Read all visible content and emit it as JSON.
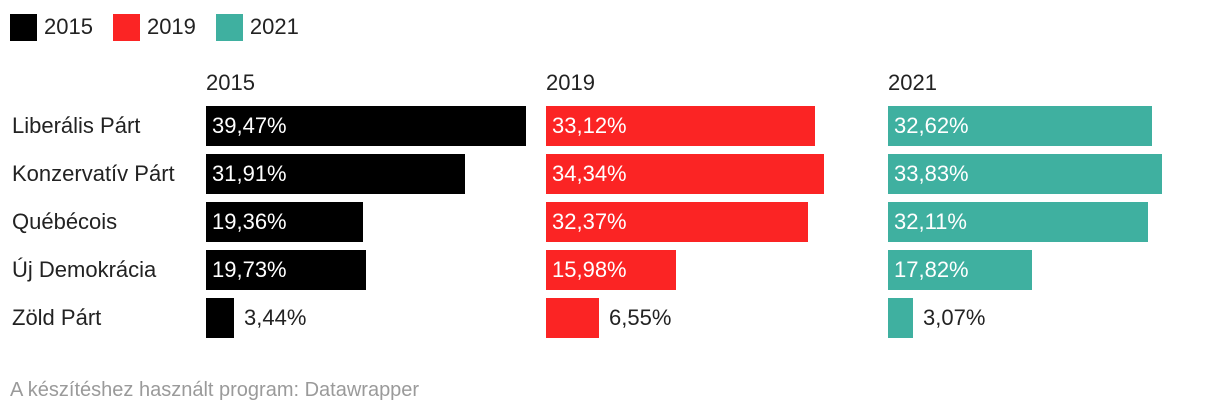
{
  "legend": [
    {
      "label": "2015",
      "color": "#000000"
    },
    {
      "label": "2019",
      "color": "#fb2424"
    },
    {
      "label": "2021",
      "color": "#3fb0a0"
    }
  ],
  "chart_data": {
    "type": "bar",
    "categories": [
      "Liberális Párt",
      "Konzervatív Párt",
      "Québécois",
      "Új Demokrácia",
      "Zöld Párt"
    ],
    "series": [
      {
        "name": "2015",
        "color": "#000000",
        "values": [
          39.47,
          31.91,
          19.36,
          19.73,
          3.44
        ],
        "labels": [
          "39,47%",
          "31,91%",
          "19,36%",
          "19,73%",
          "3,44%"
        ]
      },
      {
        "name": "2019",
        "color": "#fb2424",
        "values": [
          33.12,
          34.34,
          32.37,
          15.98,
          6.55
        ],
        "labels": [
          "33,12%",
          "34,34%",
          "32,37%",
          "15,98%",
          "6,55%"
        ]
      },
      {
        "name": "2021",
        "color": "#3fb0a0",
        "values": [
          32.62,
          33.83,
          32.11,
          17.82,
          3.07
        ],
        "labels": [
          "32,62%",
          "33,83%",
          "32,11%",
          "17,82%",
          "3,07%"
        ]
      }
    ],
    "xlim": [
      0,
      39.47
    ],
    "grid": false,
    "legend_position": "top-left"
  },
  "footer": "A készítéshez használt program: Datawrapper"
}
